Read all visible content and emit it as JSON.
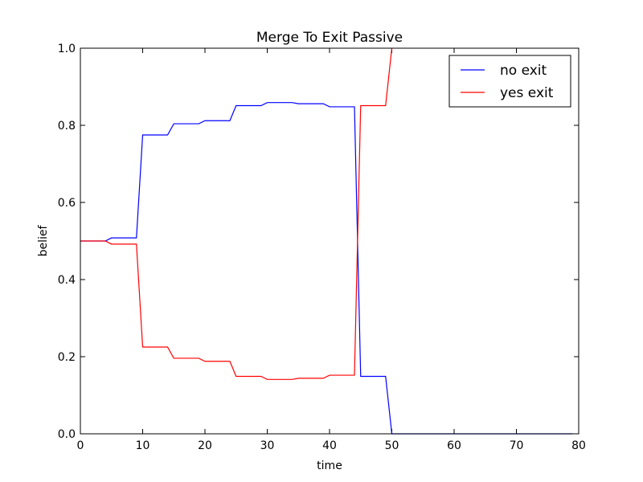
{
  "chart_data": {
    "type": "line",
    "title": "Merge To Exit Passive",
    "xlabel": "time",
    "ylabel": "belief",
    "xlim": [
      0,
      80
    ],
    "ylim": [
      0.0,
      1.0
    ],
    "xticks": [
      "0",
      "10",
      "20",
      "30",
      "40",
      "50",
      "60",
      "70",
      "80"
    ],
    "yticks": [
      "0.0",
      "0.2",
      "0.4",
      "0.6",
      "0.8",
      "1.0"
    ],
    "grid": false,
    "legend_position": "top-right",
    "series": [
      {
        "name": "no exit",
        "color": "#0000ff",
        "x": [
          0,
          1,
          2,
          3,
          4,
          5,
          6,
          7,
          8,
          9,
          10,
          11,
          12,
          13,
          14,
          15,
          16,
          17,
          18,
          19,
          20,
          21,
          22,
          23,
          24,
          25,
          26,
          27,
          28,
          29,
          30,
          31,
          32,
          33,
          34,
          35,
          36,
          37,
          38,
          39,
          40,
          41,
          42,
          43,
          44,
          45,
          46,
          47,
          48,
          49,
          50,
          51,
          52,
          53,
          54,
          55,
          56,
          57,
          58,
          59,
          60,
          61,
          62,
          63,
          64,
          65,
          66,
          67,
          68,
          69,
          70,
          71,
          72,
          73,
          74,
          75,
          76,
          77,
          78,
          79
        ],
        "values": [
          0.5,
          0.5,
          0.5,
          0.5,
          0.5,
          0.508,
          0.508,
          0.508,
          0.508,
          0.508,
          0.775,
          0.775,
          0.775,
          0.775,
          0.775,
          0.804,
          0.804,
          0.804,
          0.804,
          0.804,
          0.812,
          0.812,
          0.812,
          0.812,
          0.812,
          0.851,
          0.851,
          0.851,
          0.851,
          0.851,
          0.859,
          0.859,
          0.859,
          0.859,
          0.859,
          0.856,
          0.856,
          0.856,
          0.856,
          0.856,
          0.848,
          0.848,
          0.848,
          0.848,
          0.848,
          0.149,
          0.149,
          0.149,
          0.149,
          0.149,
          0.0,
          0.0,
          0.0,
          0.0,
          0.0,
          0.0,
          0.0,
          0.0,
          0.0,
          0.0,
          0.0,
          0.0,
          0.0,
          0.0,
          0.0,
          0.0,
          0.0,
          0.0,
          0.0,
          0.0,
          0.0,
          0.0,
          0.0,
          0.0,
          0.0,
          0.0,
          0.0,
          0.0,
          0.0,
          0.0
        ]
      },
      {
        "name": "yes exit",
        "color": "#ff0000",
        "x": [
          0,
          1,
          2,
          3,
          4,
          5,
          6,
          7,
          8,
          9,
          10,
          11,
          12,
          13,
          14,
          15,
          16,
          17,
          18,
          19,
          20,
          21,
          22,
          23,
          24,
          25,
          26,
          27,
          28,
          29,
          30,
          31,
          32,
          33,
          34,
          35,
          36,
          37,
          38,
          39,
          40,
          41,
          42,
          43,
          44,
          45,
          46,
          47,
          48,
          49,
          50
        ],
        "values": [
          0.5,
          0.5,
          0.5,
          0.5,
          0.5,
          0.492,
          0.492,
          0.492,
          0.492,
          0.492,
          0.225,
          0.225,
          0.225,
          0.225,
          0.225,
          0.196,
          0.196,
          0.196,
          0.196,
          0.196,
          0.188,
          0.188,
          0.188,
          0.188,
          0.188,
          0.149,
          0.149,
          0.149,
          0.149,
          0.149,
          0.141,
          0.141,
          0.141,
          0.141,
          0.141,
          0.144,
          0.144,
          0.144,
          0.144,
          0.144,
          0.152,
          0.152,
          0.152,
          0.152,
          0.152,
          0.851,
          0.851,
          0.851,
          0.851,
          0.851,
          1.0
        ]
      }
    ]
  }
}
